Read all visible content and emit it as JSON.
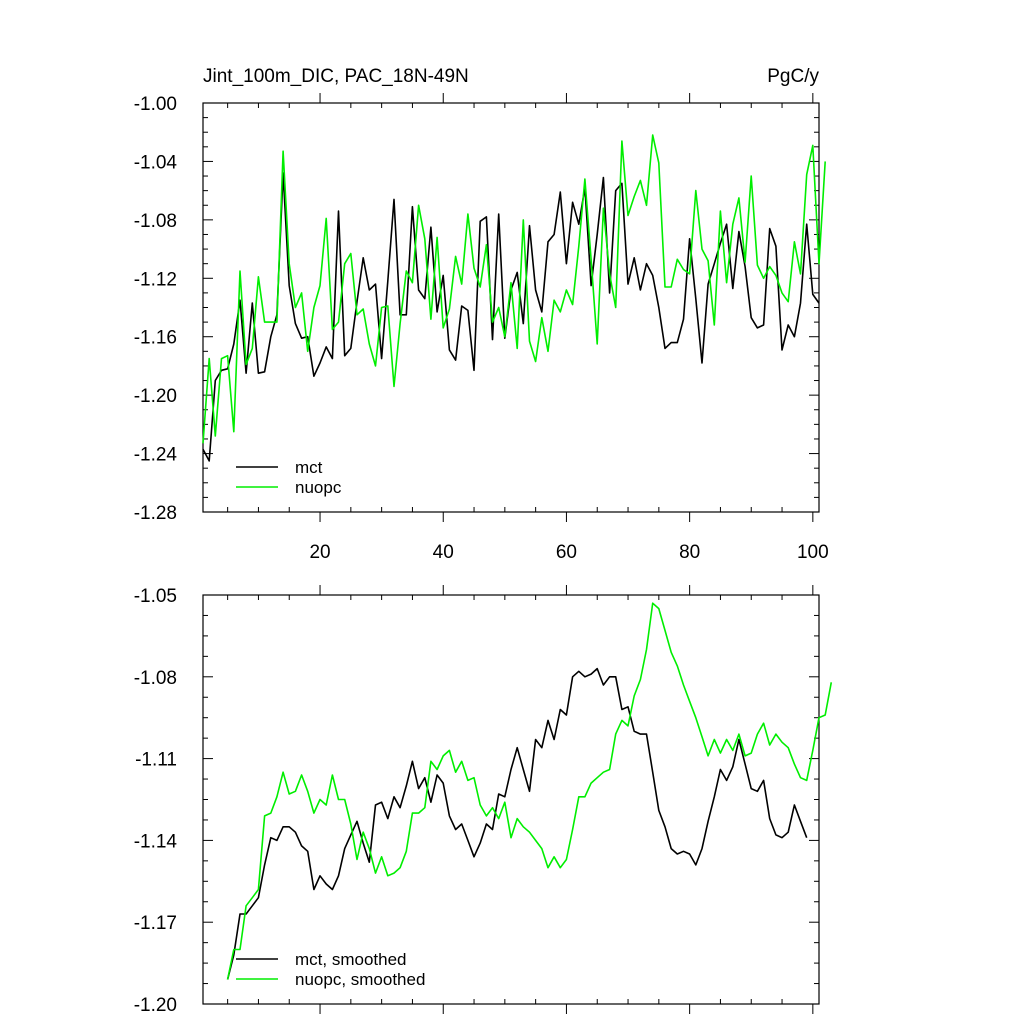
{
  "chart_data": [
    {
      "type": "line",
      "title_left": "Jint_100m_DIC, PAC_18N-49N",
      "title_right": "PgC/y",
      "xlabel": "",
      "ylabel": "",
      "xlim": [
        1,
        101
      ],
      "ylim": [
        -1.28,
        -1.0
      ],
      "x_ticks": [
        20,
        40,
        60,
        80,
        100
      ],
      "x_tick_labels": [
        "20",
        "40",
        "60",
        "80",
        "100"
      ],
      "y_ticks": [
        -1.28,
        -1.24,
        -1.2,
        -1.16,
        -1.12,
        -1.08,
        -1.04,
        -1.0
      ],
      "y_tick_labels": [
        "-1.28",
        "-1.24",
        "-1.20",
        "-1.16",
        "-1.12",
        "-1.08",
        "-1.04",
        "-1.00"
      ],
      "legend_position": "bottom-left",
      "series": [
        {
          "name": "mct",
          "color": "#000000",
          "x_start": 1,
          "values": [
            -1.237,
            -1.245,
            -1.19,
            -1.183,
            -1.182,
            -1.165,
            -1.135,
            -1.185,
            -1.137,
            -1.185,
            -1.184,
            -1.16,
            -1.145,
            -1.048,
            -1.125,
            -1.151,
            -1.161,
            -1.16,
            -1.187,
            -1.178,
            -1.167,
            -1.175,
            -1.074,
            -1.173,
            -1.168,
            -1.136,
            -1.106,
            -1.128,
            -1.124,
            -1.175,
            -1.122,
            -1.066,
            -1.145,
            -1.145,
            -1.071,
            -1.128,
            -1.134,
            -1.085,
            -1.143,
            -1.118,
            -1.169,
            -1.176,
            -1.139,
            -1.142,
            -1.183,
            -1.081,
            -1.078,
            -1.162,
            -1.076,
            -1.161,
            -1.128,
            -1.116,
            -1.151,
            -1.084,
            -1.128,
            -1.143,
            -1.095,
            -1.09,
            -1.061,
            -1.11,
            -1.068,
            -1.083,
            -1.058,
            -1.125,
            -1.09,
            -1.051,
            -1.13,
            -1.06,
            -1.055,
            -1.124,
            -1.106,
            -1.128,
            -1.11,
            -1.118,
            -1.14,
            -1.168,
            -1.164,
            -1.164,
            -1.148,
            -1.093,
            -1.134,
            -1.178,
            -1.124,
            -1.11,
            -1.096,
            -1.083,
            -1.127,
            -1.088,
            -1.112,
            -1.147,
            -1.154,
            -1.152,
            -1.086,
            -1.098,
            -1.169,
            -1.152,
            -1.16,
            -1.137,
            -1.083,
            -1.131,
            -1.137
          ]
        },
        {
          "name": "nuopc",
          "color": "#00ee00",
          "x_start": 1,
          "values": [
            -1.233,
            -1.175,
            -1.228,
            -1.175,
            -1.173,
            -1.225,
            -1.115,
            -1.179,
            -1.168,
            -1.119,
            -1.15,
            -1.15,
            -1.15,
            -1.033,
            -1.11,
            -1.14,
            -1.13,
            -1.17,
            -1.14,
            -1.125,
            -1.079,
            -1.155,
            -1.15,
            -1.11,
            -1.103,
            -1.145,
            -1.141,
            -1.165,
            -1.18,
            -1.14,
            -1.139,
            -1.194,
            -1.151,
            -1.115,
            -1.123,
            -1.07,
            -1.093,
            -1.148,
            -1.092,
            -1.154,
            -1.141,
            -1.105,
            -1.124,
            -1.076,
            -1.113,
            -1.126,
            -1.097,
            -1.15,
            -1.14,
            -1.16,
            -1.123,
            -1.168,
            -1.08,
            -1.163,
            -1.177,
            -1.147,
            -1.17,
            -1.135,
            -1.143,
            -1.128,
            -1.138,
            -1.098,
            -1.052,
            -1.107,
            -1.165,
            -1.072,
            -1.117,
            -1.14,
            -1.026,
            -1.077,
            -1.064,
            -1.053,
            -1.07,
            -1.022,
            -1.041,
            -1.126,
            -1.126,
            -1.107,
            -1.114,
            -1.117,
            -1.06,
            -1.1,
            -1.108,
            -1.152,
            -1.074,
            -1.123,
            -1.083,
            -1.065,
            -1.109,
            -1.05,
            -1.111,
            -1.12,
            -1.112,
            -1.118,
            -1.13,
            -1.136,
            -1.095,
            -1.117,
            -1.049,
            -1.029,
            -1.11,
            -1.04
          ]
        }
      ]
    },
    {
      "type": "line",
      "title_left": "",
      "title_right": "",
      "xlabel": "",
      "ylabel": "",
      "xlim": [
        1,
        101
      ],
      "ylim": [
        -1.2,
        -1.05
      ],
      "x_ticks": [
        20,
        40,
        60,
        80,
        100
      ],
      "x_tick_labels": [],
      "y_ticks": [
        -1.2,
        -1.17,
        -1.14,
        -1.11,
        -1.08,
        -1.05
      ],
      "y_tick_labels": [
        "-1.20",
        "-1.17",
        "-1.14",
        "-1.11",
        "-1.08",
        "-1.05"
      ],
      "legend_position": "bottom-left",
      "series": [
        {
          "name": "mct, smoothed",
          "color": "#000000",
          "x_start": 5,
          "values": [
            -1.191,
            -1.182,
            -1.167,
            -1.167,
            -1.164,
            -1.161,
            -1.149,
            -1.139,
            -1.14,
            -1.135,
            -1.135,
            -1.137,
            -1.142,
            -1.144,
            -1.158,
            -1.153,
            -1.156,
            -1.158,
            -1.153,
            -1.143,
            -1.138,
            -1.133,
            -1.141,
            -1.148,
            -1.127,
            -1.126,
            -1.132,
            -1.124,
            -1.128,
            -1.12,
            -1.111,
            -1.121,
            -1.117,
            -1.126,
            -1.116,
            -1.119,
            -1.131,
            -1.136,
            -1.134,
            -1.14,
            -1.146,
            -1.141,
            -1.134,
            -1.136,
            -1.123,
            -1.124,
            -1.114,
            -1.106,
            -1.114,
            -1.122,
            -1.103,
            -1.106,
            -1.096,
            -1.103,
            -1.092,
            -1.094,
            -1.08,
            -1.078,
            -1.08,
            -1.079,
            -1.077,
            -1.083,
            -1.08,
            -1.08,
            -1.092,
            -1.091,
            -1.1,
            -1.101,
            -1.101,
            -1.115,
            -1.129,
            -1.135,
            -1.143,
            -1.145,
            -1.144,
            -1.145,
            -1.149,
            -1.143,
            -1.133,
            -1.124,
            -1.114,
            -1.118,
            -1.113,
            -1.103,
            -1.112,
            -1.121,
            -1.122,
            -1.118,
            -1.132,
            -1.138,
            -1.139,
            -1.137,
            -1.127,
            -1.133,
            -1.139
          ]
        },
        {
          "name": "nuopc, smoothed",
          "color": "#00ee00",
          "x_start": 5,
          "values": [
            -1.191,
            -1.18,
            -1.18,
            -1.164,
            -1.161,
            -1.158,
            -1.131,
            -1.13,
            -1.124,
            -1.115,
            -1.123,
            -1.122,
            -1.116,
            -1.122,
            -1.13,
            -1.125,
            -1.127,
            -1.116,
            -1.125,
            -1.125,
            -1.134,
            -1.147,
            -1.137,
            -1.143,
            -1.152,
            -1.146,
            -1.153,
            -1.152,
            -1.15,
            -1.144,
            -1.13,
            -1.13,
            -1.128,
            -1.111,
            -1.114,
            -1.109,
            -1.107,
            -1.115,
            -1.111,
            -1.118,
            -1.117,
            -1.127,
            -1.131,
            -1.128,
            -1.132,
            -1.126,
            -1.139,
            -1.132,
            -1.135,
            -1.137,
            -1.14,
            -1.143,
            -1.15,
            -1.146,
            -1.15,
            -1.147,
            -1.136,
            -1.124,
            -1.124,
            -1.119,
            -1.117,
            -1.115,
            -1.114,
            -1.101,
            -1.096,
            -1.098,
            -1.087,
            -1.081,
            -1.07,
            -1.053,
            -1.055,
            -1.063,
            -1.071,
            -1.076,
            -1.083,
            -1.089,
            -1.095,
            -1.102,
            -1.109,
            -1.103,
            -1.108,
            -1.103,
            -1.107,
            -1.101,
            -1.109,
            -1.108,
            -1.101,
            -1.097,
            -1.105,
            -1.101,
            -1.104,
            -1.106,
            -1.112,
            -1.117,
            -1.118,
            -1.107,
            -1.095,
            -1.094,
            -1.082
          ]
        }
      ]
    }
  ]
}
